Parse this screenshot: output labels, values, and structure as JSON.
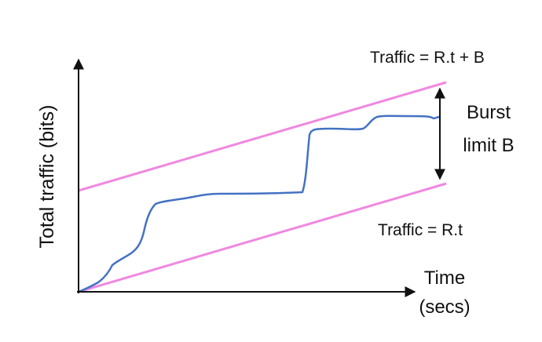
{
  "labels": {
    "y_axis": "Total traffic (bits)",
    "x_axis_line1": "Time",
    "x_axis_line2": "(secs)",
    "upper_line": "Traffic = R.t + B",
    "lower_line": "Traffic = R.t",
    "burst_line1": "Burst",
    "burst_line2": "limit B"
  },
  "colors": {
    "bound_lines": "#f088e0",
    "traffic_curve": "#4472c4",
    "axes": "#111111"
  }
}
